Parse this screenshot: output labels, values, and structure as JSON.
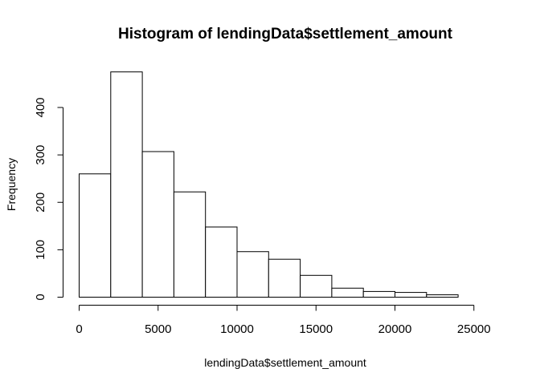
{
  "chart_data": {
    "type": "bar",
    "title": "Histogram of lendingData$settlement_amount",
    "xlabel": "lendingData$settlement_amount",
    "ylabel": "Frequency",
    "bins": [
      {
        "from": 0,
        "to": 2000,
        "count": 260
      },
      {
        "from": 2000,
        "to": 4000,
        "count": 475
      },
      {
        "from": 4000,
        "to": 6000,
        "count": 307
      },
      {
        "from": 6000,
        "to": 8000,
        "count": 222
      },
      {
        "from": 8000,
        "to": 10000,
        "count": 148
      },
      {
        "from": 10000,
        "to": 12000,
        "count": 96
      },
      {
        "from": 12000,
        "to": 14000,
        "count": 80
      },
      {
        "from": 14000,
        "to": 16000,
        "count": 46
      },
      {
        "from": 16000,
        "to": 18000,
        "count": 19
      },
      {
        "from": 18000,
        "to": 20000,
        "count": 12
      },
      {
        "from": 20000,
        "to": 22000,
        "count": 10
      },
      {
        "from": 22000,
        "to": 24000,
        "count": 5
      },
      {
        "from": 24000,
        "to": 26000,
        "count": 0
      }
    ],
    "xlim": [
      0,
      26000
    ],
    "ylim": [
      0,
      475
    ],
    "x_ticks": [
      0,
      5000,
      10000,
      15000,
      20000,
      25000
    ],
    "x_tick_labels": [
      "0",
      "5000",
      "10000",
      "15000",
      "20000",
      "25000"
    ],
    "y_ticks": [
      0,
      100,
      200,
      300,
      400
    ],
    "y_tick_labels": [
      "0",
      "100",
      "200",
      "300",
      "400"
    ],
    "grid": false,
    "legend": "none",
    "colors": {
      "bar_fill": "#ffffff",
      "bar_stroke": "#000000",
      "axis": "#000000"
    }
  }
}
